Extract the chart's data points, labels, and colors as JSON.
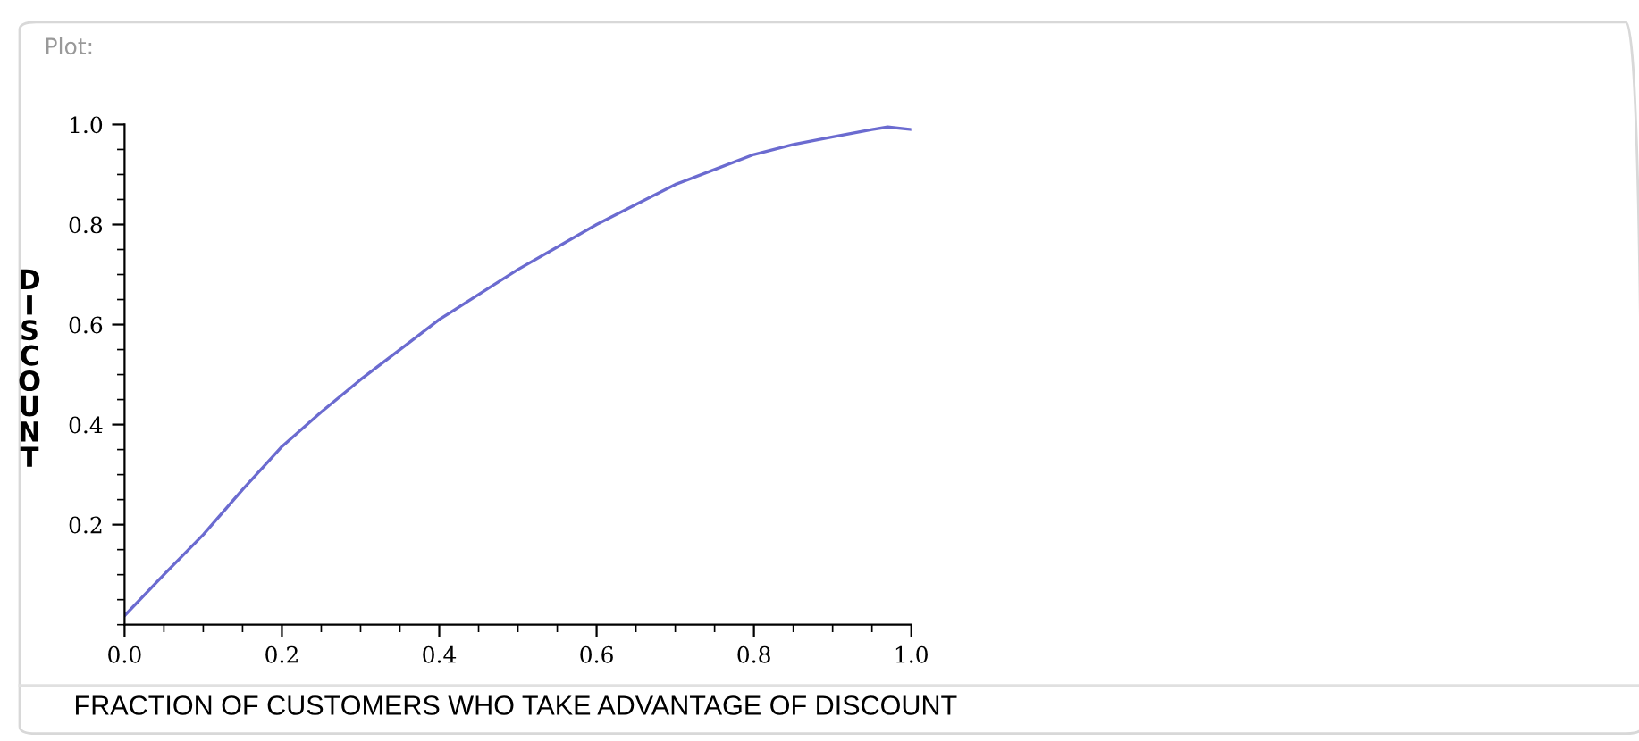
{
  "chart_data": {
    "type": "line",
    "title": "Plot:",
    "xlabel": "FRACTION OF CUSTOMERS WHO TAKE ADVANTAGE OF DISCOUNT",
    "ylabel": "DISCOUNT",
    "series": [
      {
        "color": "#6b6bd0",
        "x": [
          0,
          0.05,
          0.1,
          0.15,
          0.2,
          0.25,
          0.3,
          0.35,
          0.4,
          0.45,
          0.5,
          0.55,
          0.6,
          0.65,
          0.7,
          0.75,
          0.8,
          0.85,
          0.9,
          0.95,
          0.97,
          1.0
        ],
        "values": [
          0.018,
          0.1,
          0.18,
          0.27,
          0.356,
          0.425,
          0.49,
          0.55,
          0.61,
          0.66,
          0.71,
          0.755,
          0.8,
          0.84,
          0.88,
          0.91,
          0.94,
          0.96,
          0.975,
          0.99,
          0.995,
          0.99
        ]
      }
    ],
    "xlim": [
      0,
      1.0
    ],
    "ylim": [
      0,
      1.0
    ],
    "xticks": [
      {
        "value": 0,
        "label": "0.0"
      },
      0.2,
      0.4,
      0.6,
      0.8,
      {
        "value": 1,
        "label": "1.0"
      }
    ],
    "yticks": [
      0.2,
      0.4,
      0.6,
      0.8,
      {
        "value": 1,
        "label": "1.0"
      }
    ],
    "grid": false,
    "legend": false,
    "marker": "none",
    "line_style": "solid"
  }
}
